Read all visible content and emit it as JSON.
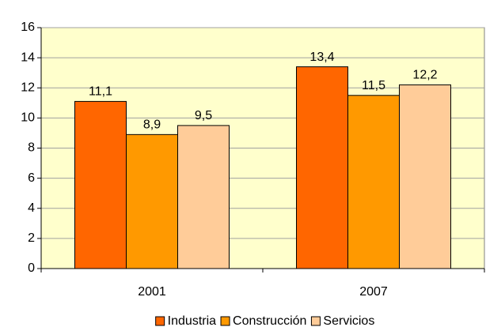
{
  "chart_data": {
    "type": "bar",
    "categories": [
      "2001",
      "2007"
    ],
    "series": [
      {
        "name": "Industria",
        "color": "#ff6600",
        "values": [
          11.1,
          13.4
        ],
        "value_labels": [
          "11,1",
          "13,4"
        ]
      },
      {
        "name": "Construcción",
        "color": "#ff9900",
        "values": [
          8.9,
          11.5
        ],
        "value_labels": [
          "8,9",
          "11,5"
        ]
      },
      {
        "name": "Servicios",
        "color": "#ffcc99",
        "values": [
          9.5,
          12.2
        ],
        "value_labels": [
          "9,5",
          "12,2"
        ]
      }
    ],
    "ylim": [
      0,
      16
    ],
    "yticks": [
      0,
      2,
      4,
      6,
      8,
      10,
      12,
      14,
      16
    ],
    "grid": true,
    "legend": "bottom"
  }
}
